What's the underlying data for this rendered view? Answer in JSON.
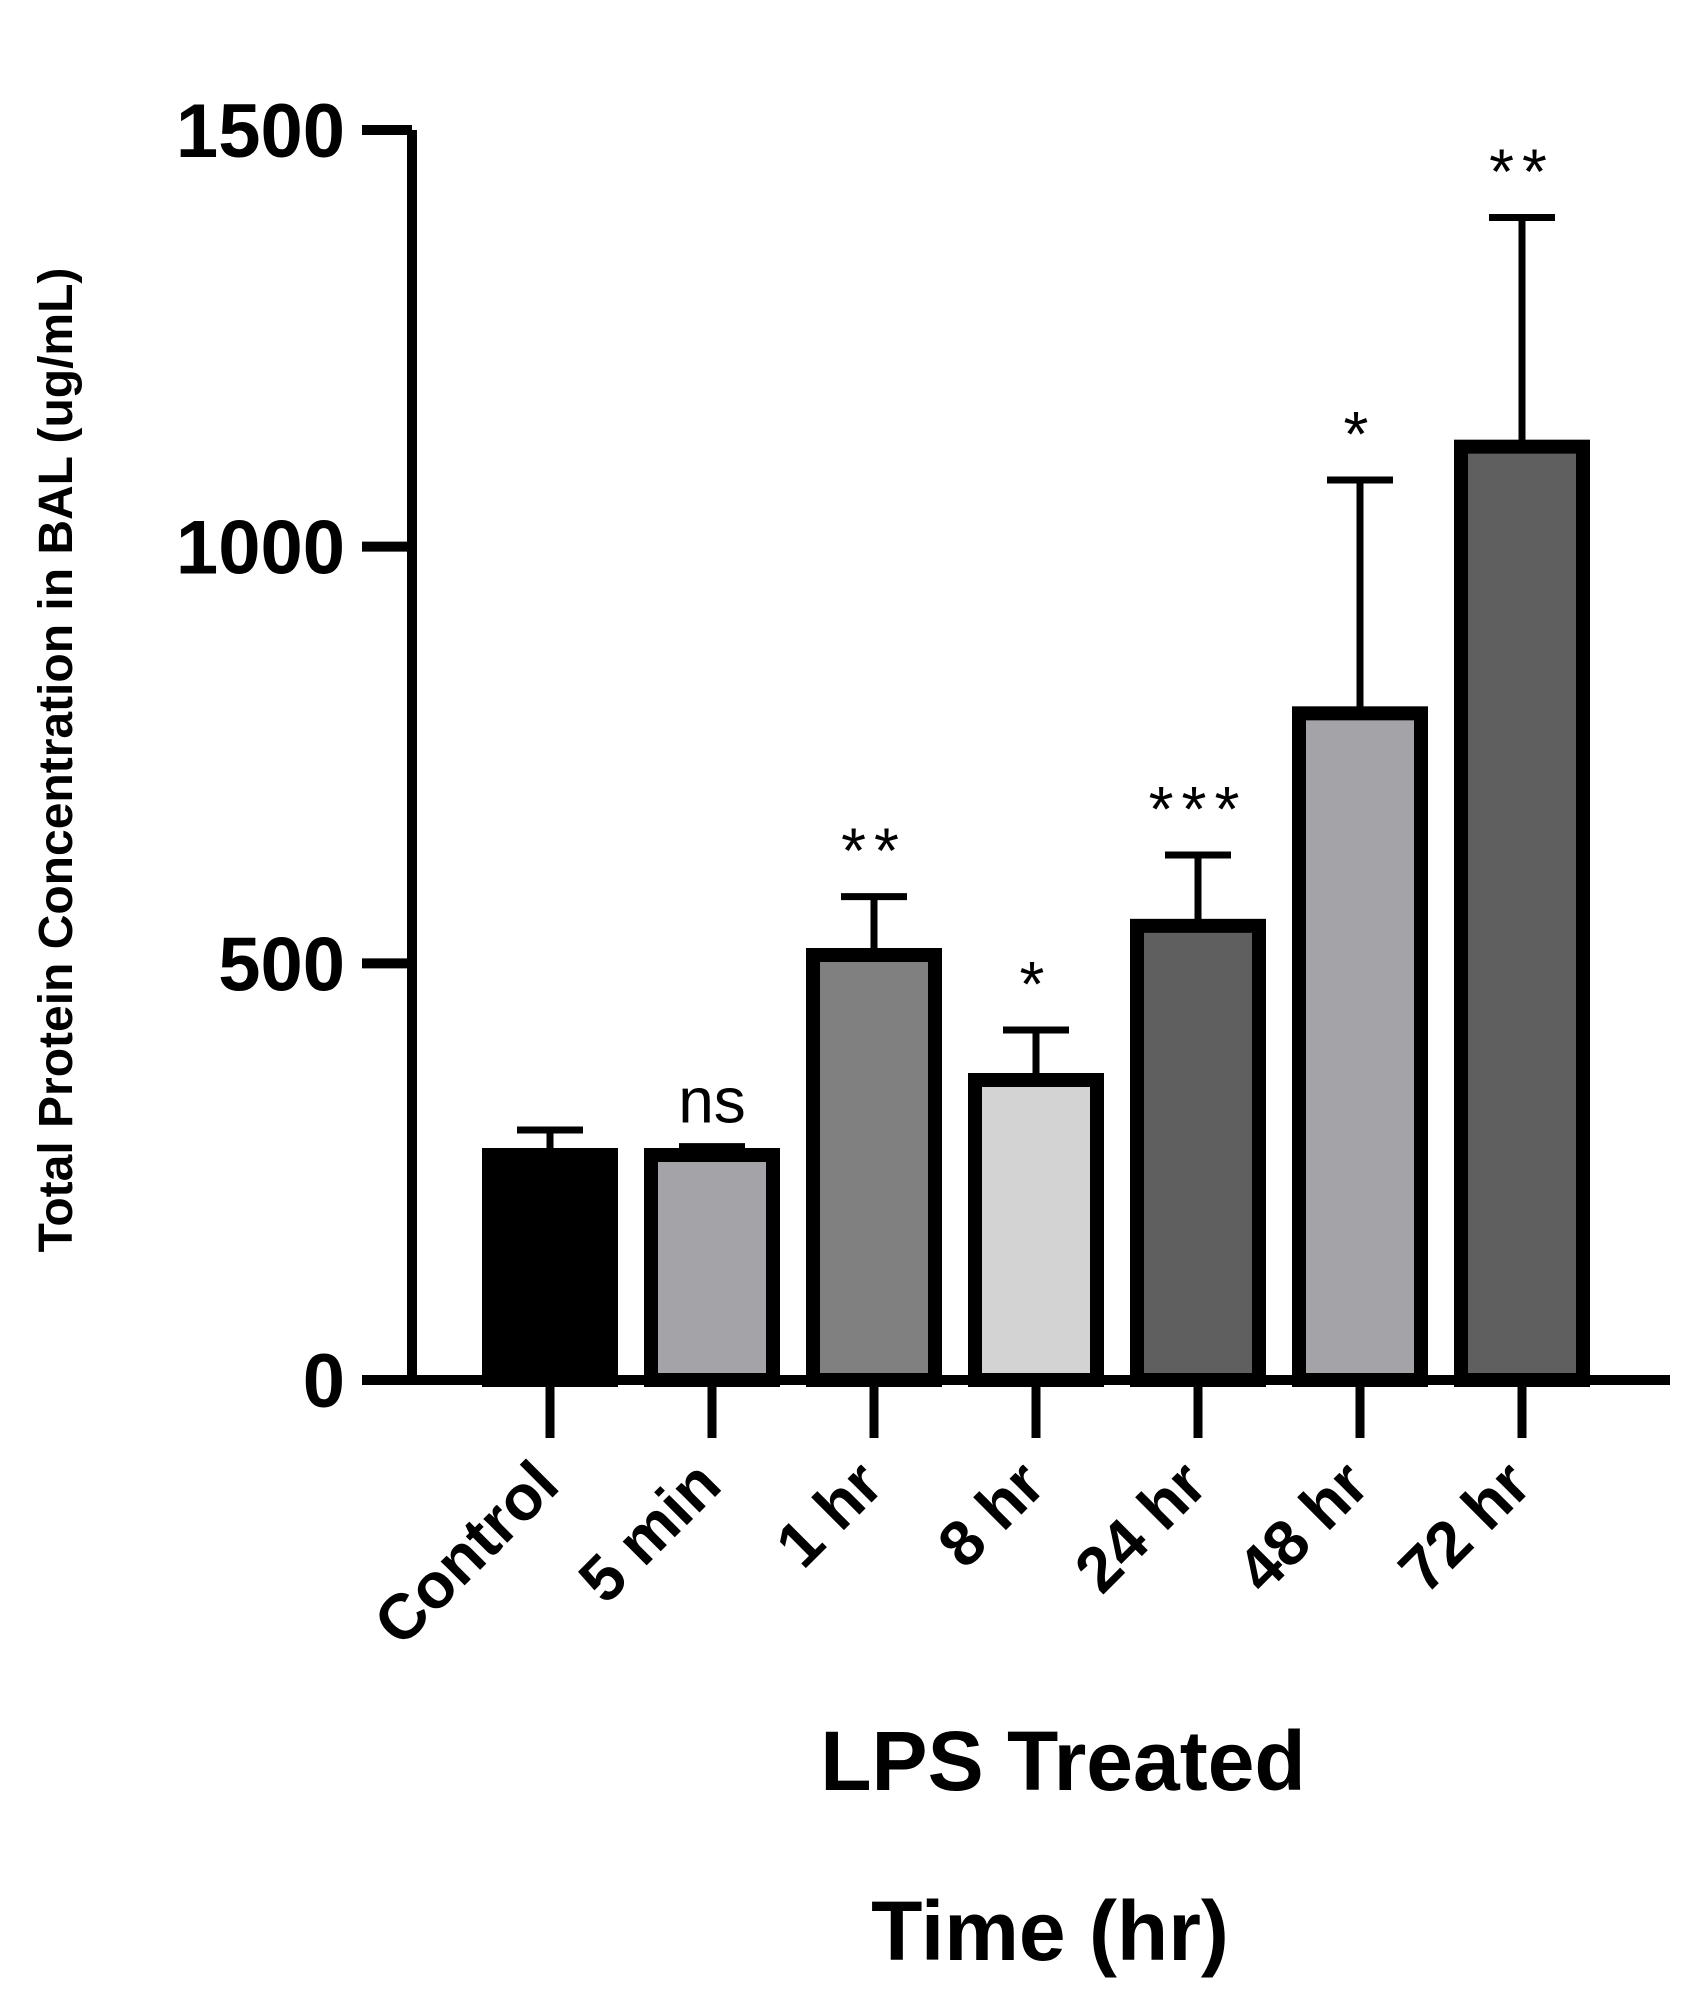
{
  "chart_data": {
    "type": "bar",
    "title": "",
    "ylabel": "Total Protein Concentration in BAL (ug/mL)",
    "xlabel_line1": "LPS Treated",
    "xlabel_line2": "Time (hr)",
    "ylim": [
      0,
      1500
    ],
    "yticks": [
      "0",
      "500",
      "1000",
      "1500"
    ],
    "categories": [
      "Control",
      "5 min",
      "1 hr",
      "8 hr",
      "24 hr",
      "48 hr",
      "72 hr"
    ],
    "values": [
      270,
      270,
      510,
      360,
      545,
      800,
      1120
    ],
    "error_upper": [
      300,
      280,
      580,
      420,
      630,
      1080,
      1395
    ],
    "significance": [
      "",
      "ns",
      "**",
      "*",
      "***",
      "*",
      "**"
    ],
    "fill_colors": [
      "#000000",
      "#a3a3a8",
      "#808080",
      "#d3d3d3",
      "#5f5f5f",
      "#a3a3a8",
      "#5f5f5f"
    ],
    "grid": false,
    "legend": "none"
  }
}
